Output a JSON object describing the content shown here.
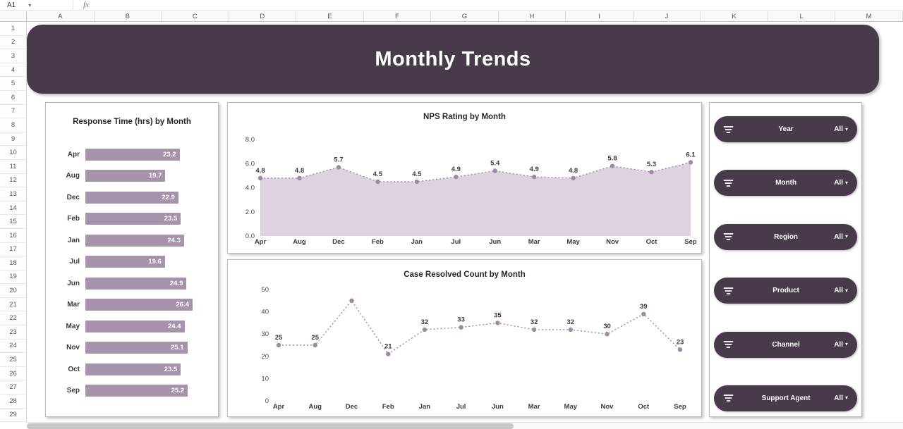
{
  "colors": {
    "banner_bg": "#473b49",
    "accent_bar": "#a792ab",
    "area_fill": "#ddd3df",
    "line_stroke": "#9d89a2",
    "slicer_bg": "#473b49"
  },
  "spreadsheet": {
    "name_box": "A1",
    "fx_label": "fx",
    "columns": [
      "A",
      "B",
      "C",
      "D",
      "E",
      "F",
      "G",
      "H",
      "I",
      "J",
      "K",
      "L",
      "M"
    ],
    "row_start": 1,
    "row_end": 29
  },
  "dashboard": {
    "title": "Monthly Trends"
  },
  "slicers": [
    {
      "label": "Year",
      "value": "All"
    },
    {
      "label": "Month",
      "value": "All"
    },
    {
      "label": "Region",
      "value": "All"
    },
    {
      "label": "Product",
      "value": "All"
    },
    {
      "label": "Channel",
      "value": "All"
    },
    {
      "label": "Support Agent",
      "value": "All"
    }
  ],
  "chart_data": [
    {
      "type": "bar",
      "orientation": "horizontal",
      "title": "Response Time (hrs) by Month",
      "categories": [
        "Apr",
        "Aug",
        "Dec",
        "Feb",
        "Jan",
        "Jul",
        "Jun",
        "Mar",
        "May",
        "Nov",
        "Oct",
        "Sep"
      ],
      "values": [
        23.2,
        19.7,
        22.9,
        23.5,
        24.3,
        19.6,
        24.9,
        26.4,
        24.4,
        25.1,
        23.5,
        25.2
      ]
    },
    {
      "type": "area",
      "title": "NPS Rating by Month",
      "categories": [
        "Apr",
        "Aug",
        "Dec",
        "Feb",
        "Jan",
        "Jul",
        "Jun",
        "Mar",
        "May",
        "Nov",
        "Oct",
        "Sep"
      ],
      "values": [
        4.8,
        4.8,
        5.7,
        4.5,
        4.5,
        4.9,
        5.4,
        4.9,
        4.8,
        5.8,
        5.3,
        6.1
      ],
      "ylim": [
        0,
        8
      ],
      "yticks": [
        "0.0",
        "2.0",
        "4.0",
        "6.0",
        "8.0"
      ],
      "label_decimals": 1,
      "legend": "none",
      "grid": false
    },
    {
      "type": "line",
      "title": "Case Resolved Count by Month",
      "categories": [
        "Apr",
        "Aug",
        "Dec",
        "Feb",
        "Jan",
        "Jul",
        "Jun",
        "Mar",
        "May",
        "Nov",
        "Oct",
        "Sep"
      ],
      "values": [
        25,
        25,
        45,
        21,
        32,
        33,
        35,
        32,
        32,
        30,
        39,
        23
      ],
      "point_labels": [
        "25",
        "25",
        "",
        "21",
        "32",
        "33",
        "35",
        "32",
        "32",
        "30",
        "39",
        "23"
      ],
      "ylim": [
        0,
        50
      ],
      "yticks": [
        "0",
        "10",
        "20",
        "30",
        "40",
        "50"
      ],
      "label_decimals": 0,
      "legend": "none",
      "grid": false
    }
  ]
}
